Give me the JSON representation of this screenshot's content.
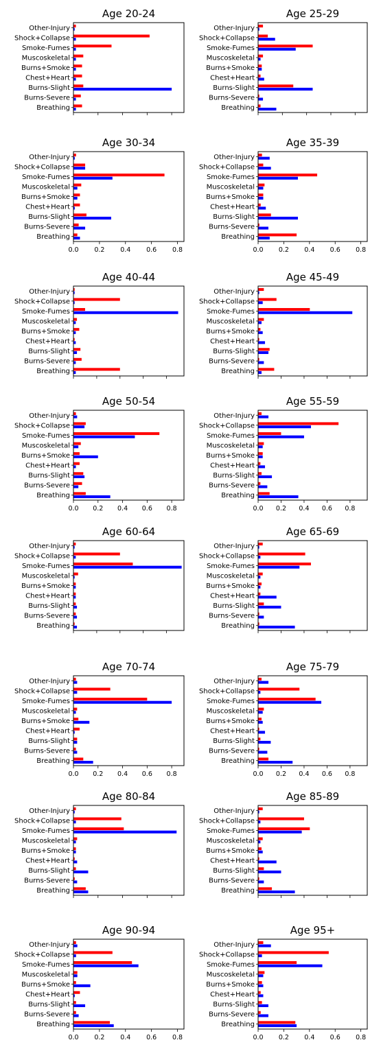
{
  "colors": {
    "series_red": "#ff0000",
    "series_blue": "#0000ff",
    "axis": "#000000"
  },
  "categories": [
    "Other-Injury",
    "Shock+Collapse",
    "Smoke-Fumes",
    "Muscoskeletal",
    "Burns+Smoke",
    "Chest+Heart",
    "Burns-Slight",
    "Burns-Severe",
    "Breathing"
  ],
  "chart_data": [
    {
      "type": "bar",
      "orientation": "horizontal",
      "title": "Age 20-24",
      "xlim": [
        0,
        0.9
      ],
      "xticks": [],
      "series": [
        {
          "values": [
            0.02,
            0.62,
            0.31,
            0.08,
            0.07,
            0.07,
            0.08,
            0.06,
            0.07
          ]
        },
        {
          "values": [
            0.01,
            0.02,
            0.02,
            0.02,
            0.02,
            0.02,
            0.8,
            0.02,
            0.02
          ]
        }
      ]
    },
    {
      "type": "bar",
      "orientation": "horizontal",
      "title": "Age 25-29",
      "xlim": [
        0,
        0.9
      ],
      "xticks": [],
      "series": [
        {
          "values": [
            0.04,
            0.08,
            0.45,
            0.04,
            0.03,
            0.02,
            0.29,
            0.01,
            0.02
          ]
        },
        {
          "values": [
            0.01,
            0.14,
            0.31,
            0.02,
            0.03,
            0.05,
            0.45,
            0.04,
            0.15
          ]
        }
      ]
    },
    {
      "type": "bar",
      "orientation": "horizontal",
      "title": "Age 30-34",
      "xlim": [
        0,
        0.85
      ],
      "xticks": [
        "0.0",
        "0.2",
        "0.4",
        "0.6",
        "0.8"
      ],
      "series": [
        {
          "values": [
            0.02,
            0.09,
            0.7,
            0.06,
            0.05,
            0.05,
            0.1,
            0.04,
            0.03
          ]
        },
        {
          "values": [
            0.01,
            0.09,
            0.3,
            0.03,
            0.03,
            0.01,
            0.29,
            0.09,
            0.05
          ]
        }
      ]
    },
    {
      "type": "bar",
      "orientation": "horizontal",
      "title": "Age 35-39",
      "xlim": [
        0,
        0.85
      ],
      "xticks": [
        "0.0",
        "0.2",
        "0.4",
        "0.6",
        "0.8"
      ],
      "series": [
        {
          "values": [
            0.03,
            0.04,
            0.46,
            0.05,
            0.04,
            0.02,
            0.1,
            0.01,
            0.3
          ]
        },
        {
          "values": [
            0.09,
            0.1,
            0.31,
            0.04,
            0.04,
            0.06,
            0.31,
            0.08,
            0.09
          ]
        }
      ]
    },
    {
      "type": "bar",
      "orientation": "horizontal",
      "title": "Age 40-44",
      "xlim": [
        0,
        0.95
      ],
      "xticks": [],
      "series": [
        {
          "values": [
            0.01,
            0.4,
            0.1,
            0.03,
            0.05,
            0.01,
            0.06,
            0.07,
            0.4
          ]
        },
        {
          "values": [
            0.01,
            0.01,
            0.9,
            0.02,
            0.02,
            0.02,
            0.03,
            0.02,
            0.02
          ]
        }
      ]
    },
    {
      "type": "bar",
      "orientation": "horizontal",
      "title": "Age 45-49",
      "xlim": [
        0,
        0.95
      ],
      "xticks": [],
      "series": [
        {
          "values": [
            0.05,
            0.16,
            0.45,
            0.05,
            0.02,
            0.01,
            0.1,
            0.01,
            0.14
          ]
        },
        {
          "values": [
            0.01,
            0.04,
            0.82,
            0.03,
            0.04,
            0.06,
            0.09,
            0.05,
            0.03
          ]
        }
      ]
    },
    {
      "type": "bar",
      "orientation": "horizontal",
      "title": "Age 50-54",
      "xlim": [
        0,
        0.9
      ],
      "xticks": [
        "0.0",
        "0.2",
        "0.4",
        "0.6",
        "0.8"
      ],
      "series": [
        {
          "values": [
            0.02,
            0.1,
            0.7,
            0.06,
            0.05,
            0.05,
            0.08,
            0.07,
            0.1
          ]
        },
        {
          "values": [
            0.03,
            0.09,
            0.5,
            0.04,
            0.2,
            0.02,
            0.09,
            0.04,
            0.3
          ]
        }
      ]
    },
    {
      "type": "bar",
      "orientation": "horizontal",
      "title": "Age 55-59",
      "xlim": [
        0,
        0.95
      ],
      "xticks": [
        "0.0",
        "0.2",
        "0.4",
        "0.6",
        "0.8"
      ],
      "series": [
        {
          "values": [
            0.03,
            0.7,
            0.2,
            0.05,
            0.04,
            0.02,
            0.03,
            0.02,
            0.1
          ]
        },
        {
          "values": [
            0.09,
            0.46,
            0.4,
            0.04,
            0.04,
            0.06,
            0.12,
            0.08,
            0.35
          ]
        }
      ]
    },
    {
      "type": "bar",
      "orientation": "horizontal",
      "title": "Age 60-64",
      "xlim": [
        0,
        0.95
      ],
      "xticks": [],
      "series": [
        {
          "values": [
            0.02,
            0.4,
            0.51,
            0.04,
            0.02,
            0.02,
            0.02,
            0.02,
            0.01
          ]
        },
        {
          "values": [
            0.01,
            0.02,
            0.93,
            0.01,
            0.02,
            0.02,
            0.03,
            0.03,
            0.03
          ]
        }
      ]
    },
    {
      "type": "bar",
      "orientation": "horizontal",
      "title": "Age 65-69",
      "xlim": [
        0,
        0.95
      ],
      "xticks": [],
      "series": [
        {
          "values": [
            0.04,
            0.41,
            0.46,
            0.04,
            0.03,
            0.02,
            0.05,
            0.01,
            0.01
          ]
        },
        {
          "values": [
            0.01,
            0.02,
            0.36,
            0.02,
            0.02,
            0.16,
            0.2,
            0.05,
            0.32
          ]
        }
      ]
    },
    {
      "type": "bar",
      "orientation": "horizontal",
      "title": "Age 70-74",
      "xlim": [
        0,
        0.9
      ],
      "xticks": [
        "0.0",
        "0.2",
        "0.4",
        "0.6",
        "0.8"
      ],
      "series": [
        {
          "values": [
            0.02,
            0.3,
            0.6,
            0.03,
            0.04,
            0.05,
            0.03,
            0.02,
            0.08
          ]
        },
        {
          "values": [
            0.03,
            0.03,
            0.8,
            0.02,
            0.13,
            0.01,
            0.03,
            0.03,
            0.16
          ]
        }
      ]
    },
    {
      "type": "bar",
      "orientation": "horizontal",
      "title": "Age 75-79",
      "xlim": [
        0,
        0.95
      ],
      "xticks": [
        "0.0",
        "0.2",
        "0.4",
        "0.6",
        "0.8"
      ],
      "series": [
        {
          "values": [
            0.03,
            0.36,
            0.5,
            0.05,
            0.03,
            0.01,
            0.02,
            0.01,
            0.09
          ]
        },
        {
          "values": [
            0.09,
            0.02,
            0.55,
            0.04,
            0.04,
            0.06,
            0.11,
            0.08,
            0.3
          ]
        }
      ]
    },
    {
      "type": "bar",
      "orientation": "horizontal",
      "title": "Age 80-84",
      "xlim": [
        0,
        0.9
      ],
      "xticks": [],
      "series": [
        {
          "values": [
            0.02,
            0.39,
            0.41,
            0.03,
            0.02,
            0.01,
            0.02,
            0.01,
            0.1
          ]
        },
        {
          "values": [
            0.01,
            0.02,
            0.84,
            0.02,
            0.02,
            0.03,
            0.12,
            0.03,
            0.12
          ]
        }
      ]
    },
    {
      "type": "bar",
      "orientation": "horizontal",
      "title": "Age 85-89",
      "xlim": [
        0,
        0.95
      ],
      "xticks": [],
      "series": [
        {
          "values": [
            0.04,
            0.4,
            0.45,
            0.04,
            0.03,
            0.01,
            0.05,
            0.01,
            0.12
          ]
        },
        {
          "values": [
            0.01,
            0.02,
            0.38,
            0.02,
            0.04,
            0.16,
            0.2,
            0.05,
            0.32
          ]
        }
      ]
    },
    {
      "type": "bar",
      "orientation": "horizontal",
      "title": "Age 90-94",
      "xlim": [
        0,
        0.85
      ],
      "xticks": [
        "0.0",
        "0.2",
        "0.4",
        "0.6",
        "0.8"
      ],
      "series": [
        {
          "values": [
            0.02,
            0.3,
            0.45,
            0.03,
            0.02,
            0.05,
            0.02,
            0.02,
            0.28
          ]
        },
        {
          "values": [
            0.03,
            0.02,
            0.5,
            0.03,
            0.13,
            0.01,
            0.09,
            0.04,
            0.31
          ]
        }
      ]
    },
    {
      "type": "bar",
      "orientation": "horizontal",
      "title": "Age 95+",
      "xlim": [
        0,
        0.85
      ],
      "xticks": [
        "0.0",
        "0.2",
        "0.4",
        "0.6",
        "0.8"
      ],
      "series": [
        {
          "values": [
            0.04,
            0.55,
            0.3,
            0.05,
            0.03,
            0.02,
            0.03,
            0.02,
            0.29
          ]
        },
        {
          "values": [
            0.1,
            0.03,
            0.5,
            0.04,
            0.04,
            0.04,
            0.08,
            0.08,
            0.3
          ]
        }
      ]
    }
  ]
}
